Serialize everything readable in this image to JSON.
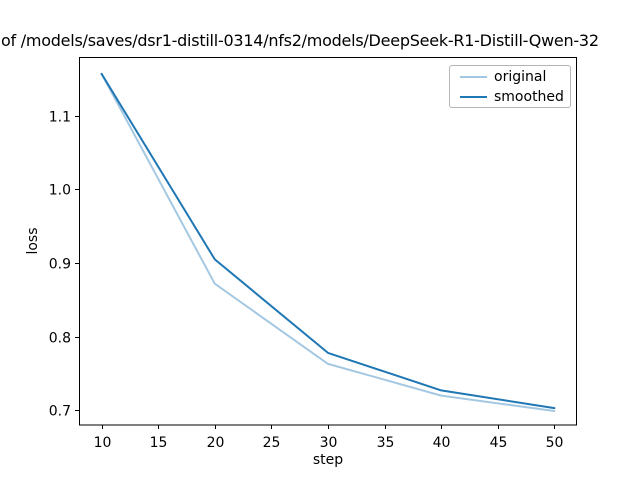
{
  "chart_data": {
    "type": "line",
    "title": "of /models/saves/dsr1-distill-0314/nfs2/models/DeepSeek-R1-Distill-Qwen-32",
    "xlabel": "step",
    "ylabel": "loss",
    "xlim": [
      8,
      52
    ],
    "ylim": [
      0.68,
      1.18
    ],
    "xticks": [
      "10",
      "15",
      "20",
      "25",
      "30",
      "35",
      "40",
      "45",
      "50"
    ],
    "yticks": [
      "0.7",
      "0.8",
      "0.9",
      "1.0",
      "1.1"
    ],
    "x": [
      10,
      20,
      30,
      40,
      50
    ],
    "series": [
      {
        "name": "original",
        "color": "#a5c8e2",
        "values": [
          1.157,
          0.872,
          0.763,
          0.72,
          0.699
        ]
      },
      {
        "name": "smoothed",
        "color": "#1f77b4",
        "values": [
          1.157,
          0.905,
          0.778,
          0.727,
          0.703
        ]
      }
    ],
    "legend_position": "upper right",
    "grid": false,
    "axis_color": "#000000",
    "background": "#ffffff"
  }
}
